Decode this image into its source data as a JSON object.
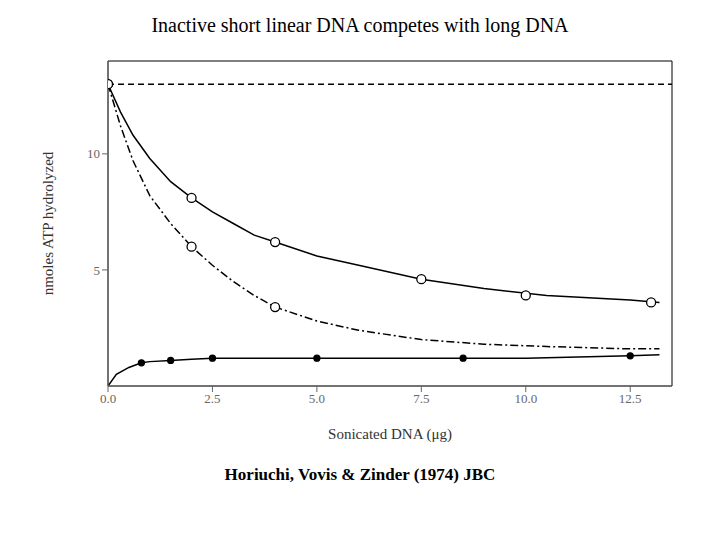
{
  "chart_data": {
    "type": "line",
    "title": "Inactive short linear DNA competes with long DNA",
    "subtitle": "Horiuchi, Vovis & Zinder (1974) JBC",
    "xlabel": "Sonicated DNA (μg)",
    "ylabel": "nmoles ATP hydrolyzed",
    "xlim": [
      0,
      13.5
    ],
    "ylim": [
      0,
      14.0
    ],
    "xticks": [
      {
        "value": 0,
        "label": "0.0"
      },
      {
        "value": 2.5,
        "label": "2.5"
      },
      {
        "value": 5,
        "label": "5.0"
      },
      {
        "value": 7.5,
        "label": "7.5"
      },
      {
        "value": 10,
        "label": "10.0"
      },
      {
        "value": 12.5,
        "label": "12.5"
      }
    ],
    "yticks": [
      5,
      10
    ],
    "grid": false,
    "color": "#000000",
    "series": [
      {
        "type": "line",
        "line_style": "dashed",
        "x": [
          0,
          13.5
        ],
        "values": [
          13.0,
          13.0
        ]
      },
      {
        "type": "line",
        "line_style": "solid",
        "x": [
          0,
          0.3,
          0.6,
          1.0,
          1.5,
          2.0,
          2.5,
          3.0,
          3.5,
          4.0,
          5.0,
          6.0,
          7.5,
          9.0,
          10.5,
          12.5,
          13.2
        ],
        "values": [
          13.0,
          11.8,
          10.8,
          9.8,
          8.8,
          8.1,
          7.5,
          7.0,
          6.5,
          6.2,
          5.6,
          5.2,
          4.6,
          4.2,
          3.9,
          3.7,
          3.6
        ]
      },
      {
        "type": "scatter",
        "marker": "open_circle",
        "x": [
          0,
          2.0,
          4.0,
          7.5,
          10.0,
          13.0
        ],
        "values": [
          13.0,
          8.1,
          6.2,
          4.6,
          3.9,
          3.6
        ]
      },
      {
        "type": "line",
        "line_style": "dashdot",
        "x": [
          0,
          0.3,
          0.6,
          1.0,
          1.5,
          2.0,
          2.5,
          3.0,
          3.5,
          4.0,
          5.0,
          6.0,
          7.5,
          9.0,
          10.5,
          12.5,
          13.2
        ],
        "values": [
          13.0,
          11.2,
          9.7,
          8.2,
          7.0,
          6.0,
          5.2,
          4.5,
          3.9,
          3.4,
          2.8,
          2.4,
          2.0,
          1.8,
          1.7,
          1.6,
          1.6
        ]
      },
      {
        "type": "scatter",
        "marker": "open_circle",
        "x": [
          0,
          2.0,
          4.0
        ],
        "values": [
          13.0,
          6.0,
          3.4
        ]
      },
      {
        "type": "line",
        "line_style": "solid",
        "x": [
          0,
          0.2,
          0.5,
          0.8,
          1.0,
          1.5,
          2.0,
          2.5,
          3.0,
          4.0,
          5.0,
          7.5,
          10.0,
          12.5,
          13.2
        ],
        "values": [
          0,
          0.5,
          0.8,
          1.0,
          1.05,
          1.1,
          1.15,
          1.2,
          1.2,
          1.2,
          1.2,
          1.2,
          1.2,
          1.3,
          1.35
        ]
      },
      {
        "type": "scatter",
        "marker": "filled_circle",
        "x": [
          0.8,
          1.5,
          2.5,
          5.0,
          8.5,
          12.5
        ],
        "values": [
          1.0,
          1.1,
          1.2,
          1.2,
          1.2,
          1.3
        ]
      }
    ]
  }
}
